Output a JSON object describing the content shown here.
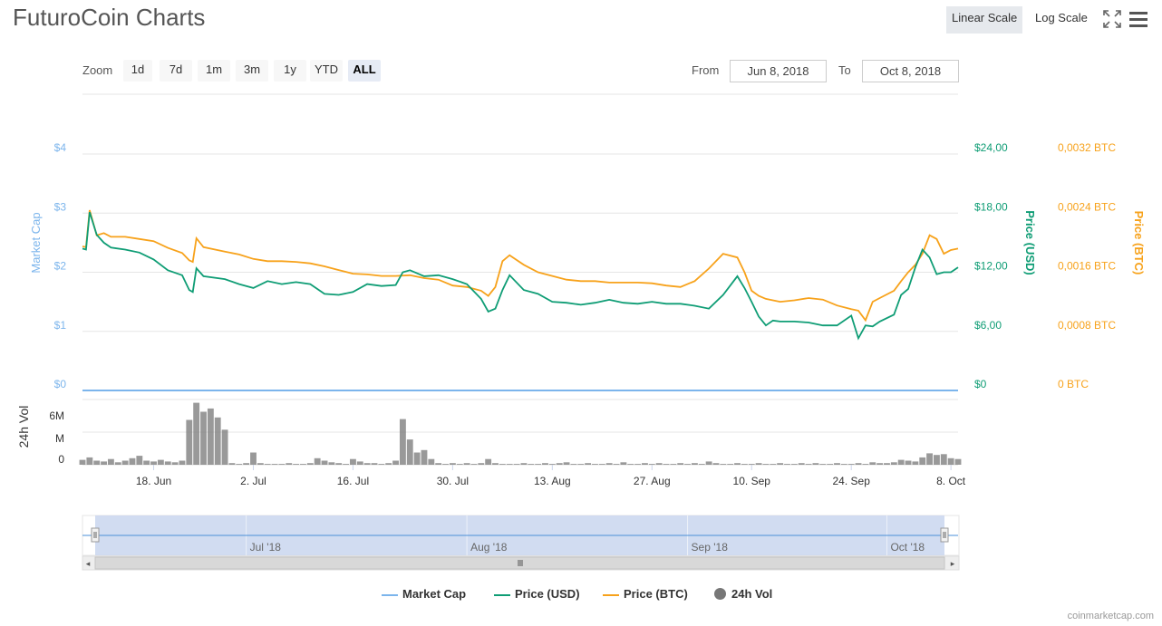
{
  "title": "FuturoCoin Charts",
  "toolbar": {
    "linear_scale": "Linear Scale",
    "log_scale": "Log Scale",
    "fullscreen_icon": "fullscreen-icon",
    "menu_icon": "hamburger-menu-icon"
  },
  "zoom": {
    "label": "Zoom",
    "buttons": [
      "1d",
      "7d",
      "1m",
      "3m",
      "1y",
      "YTD",
      "ALL"
    ],
    "active": "ALL"
  },
  "range": {
    "from_label": "From",
    "from_value": "Jun 8, 2018",
    "to_label": "To",
    "to_value": "Oct 8, 2018"
  },
  "colors": {
    "market_cap": "#7cb5ec",
    "price_usd": "#0f9d75",
    "price_btc": "#f7a21b",
    "volume": "#777777",
    "navigator_fill": "#c9d6ee"
  },
  "chart_data": {
    "type": "line",
    "x_start": "Jun 8, 2018",
    "x_end": "Oct 8, 2018",
    "axes": {
      "market_cap": {
        "label": "Market Cap",
        "ticks": [
          "$0",
          "$1",
          "$2",
          "$3",
          "$4"
        ],
        "range": [
          0,
          4
        ]
      },
      "price_usd": {
        "label": "Price (USD)",
        "ticks": [
          "$0",
          "$6,00",
          "$12,00",
          "$18,00",
          "$24,00"
        ],
        "range": [
          0,
          24
        ]
      },
      "price_btc": {
        "label": "Price (BTC)",
        "ticks": [
          "0 BTC",
          "0,0008 BTC",
          "0,0016 BTC",
          "0,0024 BTC",
          "0,0032 BTC"
        ],
        "range": [
          0,
          0.0032
        ]
      },
      "volume": {
        "label": "24h Vol",
        "ticks": [
          "0",
          "M",
          "6M"
        ],
        "range": [
          0,
          8000000
        ]
      }
    },
    "x_ticks": [
      "18. Jun",
      "2. Jul",
      "16. Jul",
      "30. Jul",
      "13. Aug",
      "27. Aug",
      "10. Sep",
      "24. Sep",
      "8. Oct"
    ],
    "x_tick_days": [
      10,
      24,
      38,
      52,
      66,
      80,
      94,
      108,
      122
    ],
    "series": [
      {
        "name": "Price (USD)",
        "days": [
          0,
          0.5,
          1,
          2,
          3,
          4,
          6,
          8,
          10,
          12,
          14,
          15,
          15.5,
          16,
          17,
          20,
          22,
          24,
          26,
          28,
          30,
          32,
          34,
          36,
          38,
          40,
          42,
          44,
          45,
          46,
          48,
          50,
          52,
          54,
          56,
          57,
          58,
          59,
          60,
          62,
          64,
          66,
          68,
          70,
          72,
          74,
          76,
          78,
          80,
          82,
          84,
          86,
          88,
          90,
          92,
          93,
          94,
          95,
          96,
          97,
          98,
          100,
          102,
          104,
          106,
          108,
          109,
          110,
          111,
          112,
          114,
          115,
          116,
          117,
          118,
          119,
          120,
          121,
          122,
          123
        ],
        "values": [
          14.4,
          14.3,
          18.1,
          15.8,
          15.0,
          14.5,
          14.3,
          14.0,
          13.3,
          12.2,
          11.7,
          10.2,
          10.0,
          12.4,
          11.6,
          11.3,
          10.8,
          10.4,
          11.1,
          10.8,
          11.0,
          10.8,
          9.8,
          9.7,
          10.0,
          10.8,
          10.6,
          10.7,
          12.0,
          12.2,
          11.6,
          11.7,
          11.3,
          10.8,
          9.3,
          8.0,
          8.3,
          10.2,
          11.7,
          10.2,
          9.8,
          9.0,
          8.9,
          8.7,
          8.9,
          9.2,
          8.9,
          8.8,
          9.0,
          8.8,
          8.8,
          8.6,
          8.3,
          9.7,
          11.6,
          10.4,
          9.0,
          7.5,
          6.6,
          7.1,
          7.0,
          7.0,
          6.9,
          6.6,
          6.6,
          7.6,
          5.3,
          6.6,
          6.5,
          7.0,
          7.7,
          9.7,
          10.3,
          12.5,
          14.3,
          13.5,
          11.8,
          12.0,
          12.0,
          12.5
        ],
        "color": "#0f9d75"
      },
      {
        "name": "Price (BTC)",
        "days": [
          0,
          0.5,
          1,
          2,
          3,
          4,
          6,
          8,
          10,
          12,
          14,
          15,
          15.5,
          16,
          17,
          20,
          22,
          24,
          26,
          28,
          30,
          32,
          34,
          36,
          38,
          40,
          42,
          44,
          46,
          48,
          50,
          52,
          54,
          56,
          57,
          58,
          59,
          60,
          62,
          64,
          66,
          68,
          70,
          72,
          74,
          76,
          78,
          80,
          82,
          84,
          86,
          88,
          90,
          92,
          93,
          94,
          95,
          96,
          97,
          98,
          100,
          102,
          104,
          106,
          108,
          109,
          110,
          111,
          112,
          114,
          115,
          116,
          117,
          118,
          119,
          120,
          121,
          122,
          123
        ],
        "values": [
          0.00195,
          0.00194,
          0.00244,
          0.0021,
          0.00213,
          0.00208,
          0.00208,
          0.00205,
          0.00202,
          0.00193,
          0.00186,
          0.00176,
          0.00174,
          0.00206,
          0.00194,
          0.00188,
          0.00184,
          0.00178,
          0.00175,
          0.00175,
          0.00174,
          0.00172,
          0.00168,
          0.00163,
          0.00158,
          0.00157,
          0.00155,
          0.00155,
          0.00156,
          0.00152,
          0.0015,
          0.00142,
          0.0014,
          0.00135,
          0.00128,
          0.0014,
          0.00175,
          0.00183,
          0.0017,
          0.0016,
          0.00155,
          0.0015,
          0.00148,
          0.00148,
          0.00146,
          0.00146,
          0.00146,
          0.00145,
          0.00142,
          0.0014,
          0.00148,
          0.00165,
          0.00185,
          0.0018,
          0.0016,
          0.00135,
          0.00128,
          0.00124,
          0.00122,
          0.0012,
          0.00122,
          0.00125,
          0.00123,
          0.00115,
          0.0011,
          0.00108,
          0.00095,
          0.0012,
          0.00125,
          0.00135,
          0.00148,
          0.0016,
          0.0017,
          0.00185,
          0.0021,
          0.00205,
          0.00185,
          0.0019,
          0.00192
        ],
        "color": "#f7a21b"
      },
      {
        "name": "Market Cap",
        "days": [
          0,
          123
        ],
        "values": [
          0,
          0
        ],
        "color": "#7cb5ec"
      },
      {
        "name": "24h Vol",
        "days": [
          0,
          1,
          2,
          3,
          4,
          5,
          6,
          7,
          8,
          9,
          10,
          11,
          12,
          13,
          14,
          15,
          16,
          17,
          18,
          19,
          20,
          21,
          22,
          23,
          24,
          25,
          26,
          27,
          28,
          29,
          30,
          31,
          32,
          33,
          34,
          35,
          36,
          37,
          38,
          39,
          40,
          41,
          42,
          43,
          44,
          45,
          46,
          47,
          48,
          49,
          50,
          51,
          52,
          53,
          54,
          55,
          56,
          57,
          58,
          59,
          60,
          61,
          62,
          63,
          64,
          65,
          66,
          67,
          68,
          69,
          70,
          71,
          72,
          73,
          74,
          75,
          76,
          77,
          78,
          79,
          80,
          81,
          82,
          83,
          84,
          85,
          86,
          87,
          88,
          89,
          90,
          91,
          92,
          93,
          94,
          95,
          96,
          97,
          98,
          99,
          100,
          101,
          102,
          103,
          104,
          105,
          106,
          107,
          108,
          109,
          110,
          111,
          112,
          113,
          114,
          115,
          116,
          117,
          118,
          119,
          120,
          121,
          122,
          123
        ],
        "values": [
          600000,
          900000,
          500000,
          400000,
          700000,
          300000,
          500000,
          800000,
          1100000,
          500000,
          400000,
          600000,
          400000,
          300000,
          500000,
          5500000,
          7600000,
          6500000,
          6900000,
          5800000,
          4300000,
          200000,
          100000,
          200000,
          1500000,
          200000,
          100000,
          100000,
          100000,
          200000,
          100000,
          100000,
          200000,
          800000,
          500000,
          300000,
          200000,
          100000,
          700000,
          400000,
          200000,
          200000,
          100000,
          200000,
          500000,
          5600000,
          3100000,
          1500000,
          1800000,
          700000,
          200000,
          100000,
          200000,
          100000,
          200000,
          100000,
          200000,
          700000,
          200000,
          100000,
          100000,
          100000,
          200000,
          100000,
          100000,
          200000,
          100000,
          200000,
          300000,
          100000,
          100000,
          200000,
          100000,
          100000,
          200000,
          100000,
          300000,
          100000,
          100000,
          200000,
          100000,
          200000,
          100000,
          100000,
          200000,
          100000,
          200000,
          100000,
          400000,
          200000,
          100000,
          100000,
          200000,
          100000,
          100000,
          200000,
          100000,
          100000,
          200000,
          100000,
          100000,
          200000,
          100000,
          200000,
          100000,
          100000,
          200000,
          100000,
          100000,
          200000,
          100000,
          300000,
          200000,
          200000,
          300000,
          600000,
          500000,
          400000,
          900000,
          1400000,
          1200000,
          1300000,
          800000,
          700000
        ],
        "color": "#777777"
      }
    ],
    "navigator": {
      "labels": [
        "Jul '18",
        "Aug '18",
        "Sep '18",
        "Oct '18"
      ],
      "label_days": [
        23,
        54,
        85,
        113
      ]
    },
    "grid": true,
    "legend_position": "bottom-center"
  },
  "legend": [
    "Market Cap",
    "Price (USD)",
    "Price (BTC)",
    "24h Vol"
  ],
  "credit": "coinmarketcap.com"
}
